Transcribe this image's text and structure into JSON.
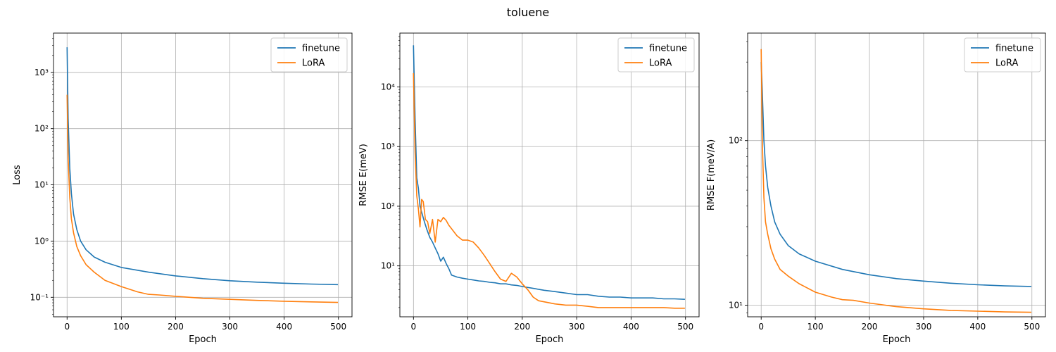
{
  "figure": {
    "suptitle": "toluene"
  },
  "colors": {
    "finetune": "#1f77b4",
    "LoRA": "#ff7f0e",
    "grid": "#b0b0b0"
  },
  "chart_data": [
    {
      "type": "line",
      "title": "",
      "xlabel": "Epoch",
      "ylabel": "Loss",
      "yscale": "log",
      "xlim": [
        -25,
        525
      ],
      "ylim": [
        0.045,
        5000
      ],
      "xticks": [
        0,
        100,
        200,
        300,
        400,
        500
      ],
      "xtick_labels": [
        "0",
        "100",
        "200",
        "300",
        "400",
        "500"
      ],
      "yticks": [
        0.1,
        1,
        10,
        100,
        1000
      ],
      "ytick_labels": [
        "10⁻¹",
        "10⁰",
        "10¹",
        "10²",
        "10³"
      ],
      "grid": true,
      "legend": "upper right",
      "series": [
        {
          "name": "finetune",
          "x": [
            0,
            2,
            5,
            8,
            12,
            18,
            25,
            35,
            50,
            70,
            100,
            150,
            200,
            250,
            300,
            350,
            400,
            450,
            499
          ],
          "y": [
            2800,
            150,
            20,
            7,
            3,
            1.6,
            1.0,
            0.7,
            0.52,
            0.42,
            0.34,
            0.28,
            0.24,
            0.215,
            0.197,
            0.186,
            0.178,
            0.172,
            0.168
          ]
        },
        {
          "name": "LoRA",
          "x": [
            0,
            2,
            5,
            8,
            12,
            18,
            25,
            35,
            50,
            70,
            100,
            130,
            150,
            170,
            200,
            250,
            300,
            350,
            400,
            450,
            499
          ],
          "y": [
            400,
            30,
            6,
            2.5,
            1.4,
            0.8,
            0.55,
            0.38,
            0.28,
            0.2,
            0.155,
            0.125,
            0.113,
            0.11,
            0.104,
            0.096,
            0.092,
            0.088,
            0.085,
            0.083,
            0.081
          ]
        }
      ]
    },
    {
      "type": "line",
      "title": "",
      "xlabel": "Epoch",
      "ylabel": "RMSE E(meV)",
      "yscale": "log",
      "xlim": [
        -25,
        525
      ],
      "ylim": [
        1.4,
        80000
      ],
      "xticks": [
        0,
        100,
        200,
        300,
        400,
        500
      ],
      "xtick_labels": [
        "0",
        "100",
        "200",
        "300",
        "400",
        "500"
      ],
      "yticks": [
        10,
        100,
        1000,
        10000
      ],
      "ytick_labels": [
        "10¹",
        "10²",
        "10³",
        "10⁴"
      ],
      "grid": true,
      "legend": "upper right",
      "series": [
        {
          "name": "finetune",
          "x": [
            0,
            3,
            6,
            9,
            12,
            15,
            20,
            25,
            30,
            35,
            40,
            45,
            50,
            55,
            60,
            65,
            70,
            80,
            90,
            100,
            110,
            120,
            130,
            140,
            150,
            160,
            170,
            180,
            190,
            200,
            220,
            240,
            260,
            280,
            300,
            320,
            340,
            360,
            380,
            400,
            420,
            440,
            460,
            480,
            499
          ],
          "y": [
            50000,
            3000,
            300,
            200,
            100,
            80,
            55,
            40,
            30,
            25,
            20,
            16,
            12,
            14,
            11,
            9,
            7,
            6.5,
            6.2,
            6,
            5.8,
            5.6,
            5.5,
            5.3,
            5.2,
            5,
            5,
            4.8,
            4.7,
            4.5,
            4.2,
            3.9,
            3.7,
            3.5,
            3.3,
            3.3,
            3.1,
            3.0,
            3.0,
            2.9,
            2.9,
            2.9,
            2.8,
            2.8,
            2.75
          ]
        },
        {
          "name": "LoRA",
          "x": [
            0,
            3,
            6,
            9,
            12,
            15,
            18,
            22,
            26,
            30,
            35,
            40,
            45,
            50,
            55,
            60,
            65,
            70,
            80,
            90,
            100,
            110,
            120,
            130,
            140,
            150,
            160,
            170,
            180,
            190,
            200,
            210,
            220,
            230,
            240,
            260,
            280,
            300,
            320,
            340,
            360,
            380,
            400,
            420,
            440,
            460,
            480,
            499
          ],
          "y": [
            17000,
            800,
            150,
            90,
            45,
            130,
            120,
            60,
            55,
            35,
            60,
            25,
            60,
            55,
            65,
            58,
            48,
            42,
            32,
            27,
            27,
            25,
            20,
            15,
            11,
            8,
            6,
            5.5,
            7.5,
            6.5,
            5,
            4,
            3,
            2.6,
            2.5,
            2.3,
            2.2,
            2.2,
            2.1,
            2.0,
            2.0,
            2.0,
            2.0,
            2.0,
            2.0,
            2.0,
            1.95,
            1.95
          ]
        }
      ]
    },
    {
      "type": "line",
      "title": "",
      "xlabel": "Epoch",
      "ylabel": "RMSE F(meV/A)",
      "yscale": "log",
      "xlim": [
        -25,
        525
      ],
      "ylim": [
        8.5,
        450
      ],
      "xticks": [
        0,
        100,
        200,
        300,
        400,
        500
      ],
      "xtick_labels": [
        "0",
        "100",
        "200",
        "300",
        "400",
        "500"
      ],
      "yticks": [
        10,
        100
      ],
      "ytick_labels": [
        "10¹",
        "10²"
      ],
      "grid": true,
      "legend": "upper right",
      "series": [
        {
          "name": "finetune",
          "x": [
            0,
            2,
            5,
            8,
            12,
            18,
            25,
            35,
            50,
            70,
            100,
            150,
            200,
            250,
            300,
            350,
            400,
            450,
            499
          ],
          "y": [
            300,
            200,
            100,
            70,
            52,
            40,
            32,
            27,
            23,
            20.5,
            18.5,
            16.5,
            15.3,
            14.5,
            14,
            13.6,
            13.3,
            13.1,
            13
          ]
        },
        {
          "name": "LoRA",
          "x": [
            0,
            2,
            5,
            8,
            12,
            18,
            25,
            35,
            50,
            70,
            100,
            130,
            150,
            170,
            200,
            250,
            300,
            350,
            400,
            450,
            499
          ],
          "y": [
            360,
            100,
            45,
            32,
            27,
            22,
            19,
            16.5,
            15,
            13.5,
            12,
            11.2,
            10.8,
            10.7,
            10.3,
            9.8,
            9.5,
            9.3,
            9.2,
            9.1,
            9.05
          ]
        }
      ]
    }
  ]
}
